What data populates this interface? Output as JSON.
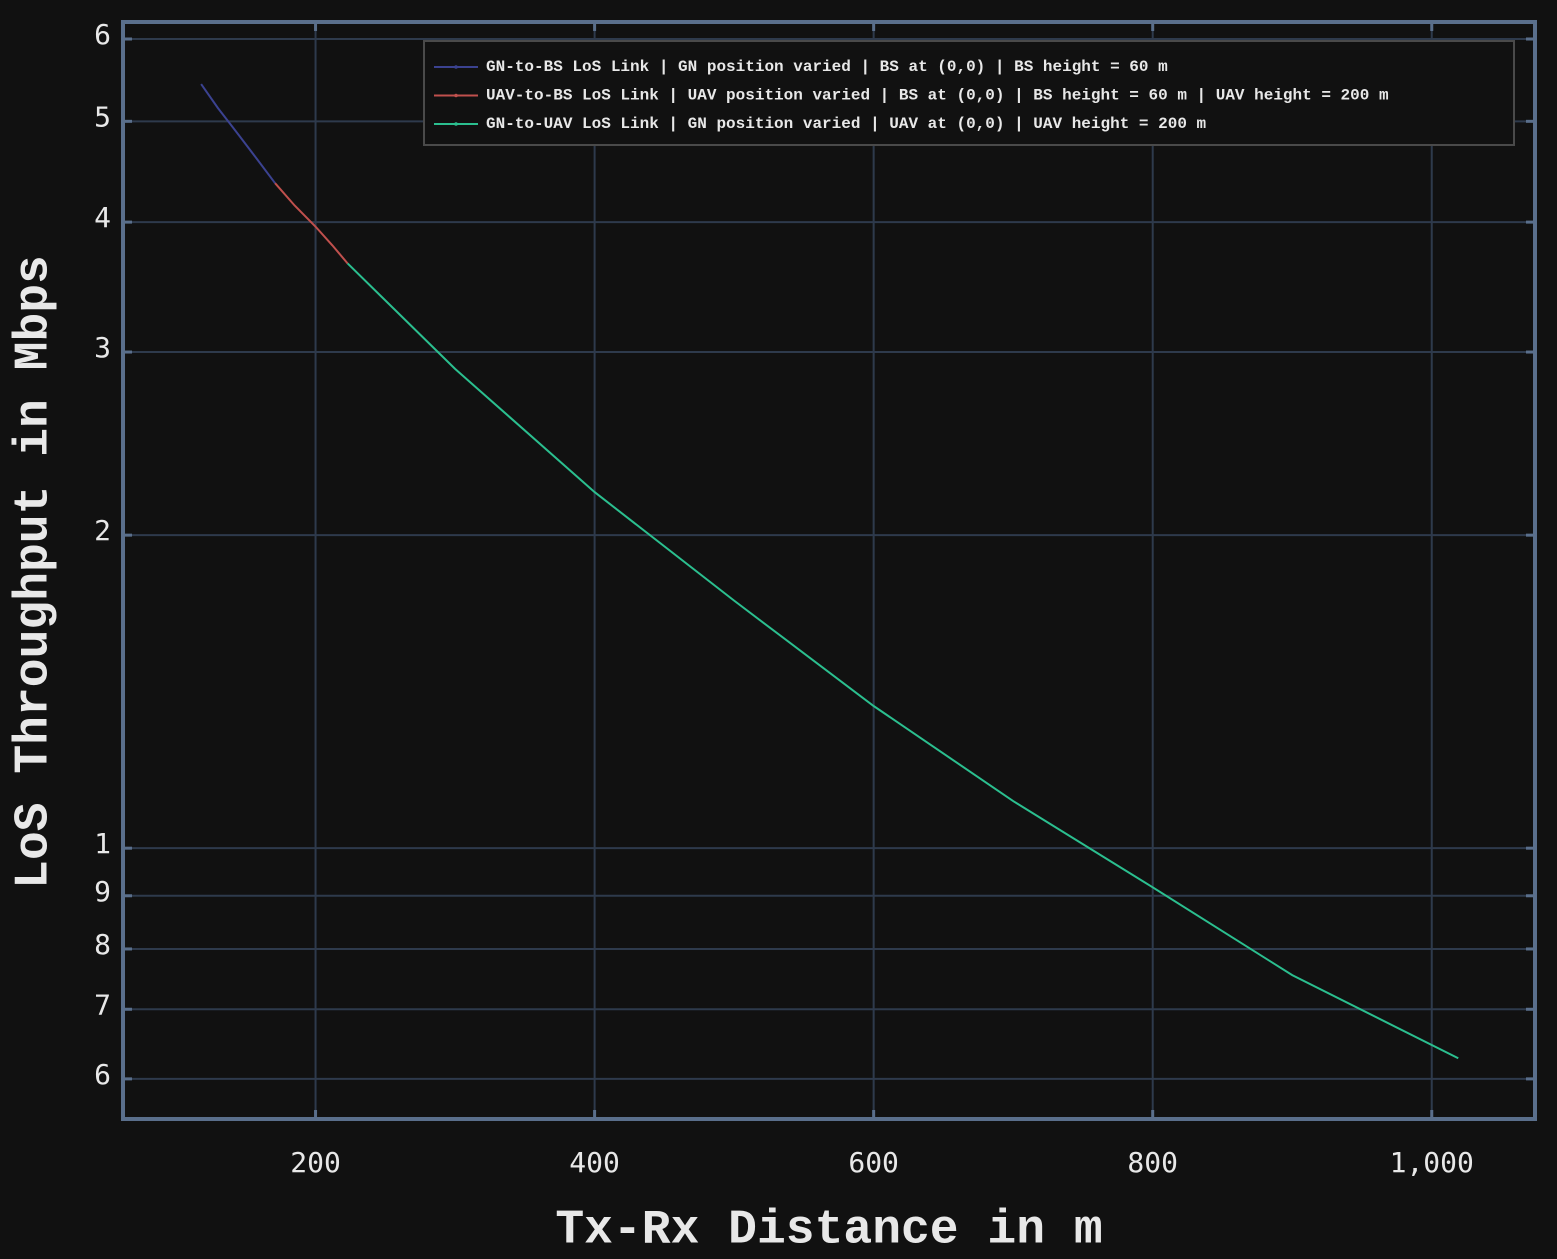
{
  "chart_data": {
    "type": "line",
    "xlabel": "Tx-Rx Distance in m",
    "ylabel": "LoS Throughput in Mbps",
    "log_y": true,
    "grid": true,
    "legend": "upper right",
    "xlim": [
      62,
      1074
    ],
    "ylim": [
      0.549,
      6.23
    ],
    "xticks": [
      200,
      400,
      600,
      800,
      {
        "value": 1000,
        "label": "1,000"
      }
    ],
    "yticks": [
      {
        "value": 0.6,
        "label": "6"
      },
      {
        "value": 0.7,
        "label": "7"
      },
      {
        "value": 0.8,
        "label": "8"
      },
      {
        "value": 0.9,
        "label": "9"
      },
      1,
      2,
      3,
      4,
      5,
      6
    ],
    "series": [
      {
        "name": "GN-to-BS LoS Link | GN position varied | BS at (0,0) | BS height = 60 m",
        "color": "#3b4290",
        "x": [
          118,
          130,
          145,
          158,
          171
        ],
        "values": [
          5.43,
          5.15,
          4.85,
          4.6,
          4.36
        ]
      },
      {
        "name": "UAV-to-BS LoS Link | UAV position varied | BS at (0,0) | BS height = 60 m | UAV height = 200 m",
        "color": "#c0504d",
        "x": [
          171,
          185,
          200,
          212,
          223
        ],
        "values": [
          4.36,
          4.15,
          3.96,
          3.8,
          3.65
        ]
      },
      {
        "name": "GN-to-UAV LoS Link | GN position varied | UAV at (0,0) | UAV height = 200 m",
        "color": "#2bbf8f",
        "x": [
          223,
          300,
          400,
          500,
          600,
          700,
          800,
          900,
          1019
        ],
        "values": [
          3.65,
          2.89,
          2.2,
          1.73,
          1.37,
          1.11,
          0.917,
          0.755,
          0.628
        ]
      }
    ]
  }
}
